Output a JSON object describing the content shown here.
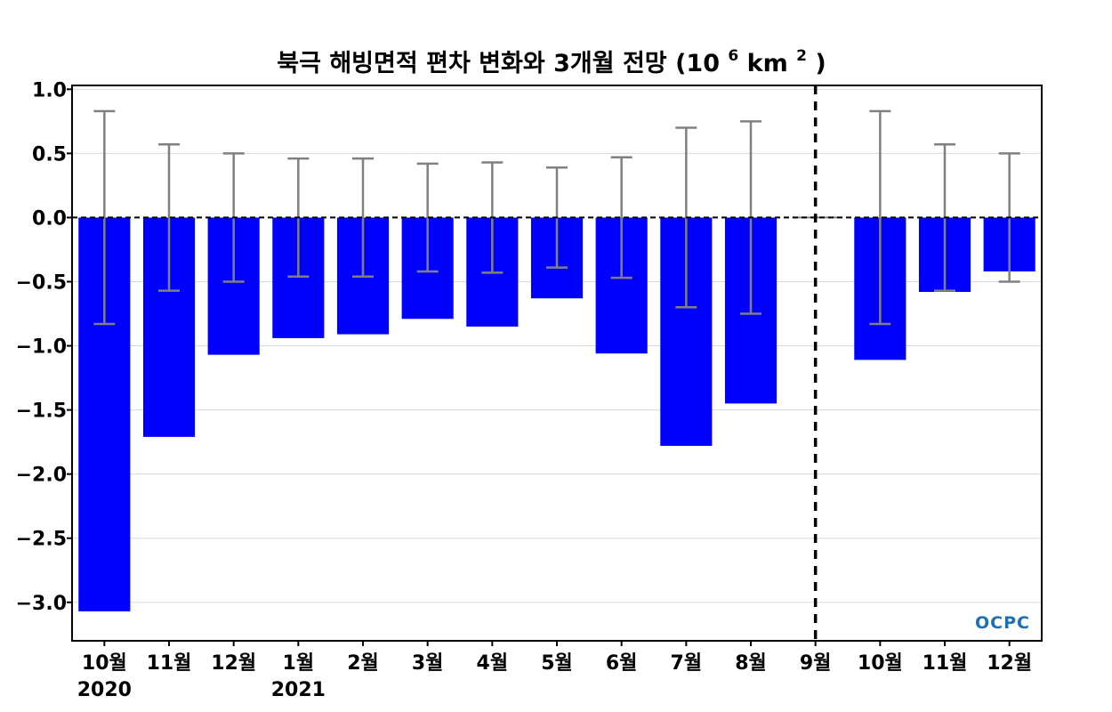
{
  "chart_data": {
    "type": "bar",
    "title": "북극 해빙면적 편차 변화와 3개월 전망",
    "title_unit": {
      "open": "(10",
      "sup1": "6",
      "mid": "km",
      "sup2": "2",
      "close": ")"
    },
    "categories": [
      "10월",
      "11월",
      "12월",
      "1월",
      "2월",
      "3월",
      "4월",
      "5월",
      "6월",
      "7월",
      "8월",
      "9월",
      "10월",
      "11월",
      "12월"
    ],
    "year_labels": [
      {
        "category_index": 0,
        "text": "2020"
      },
      {
        "category_index": 3,
        "text": "2021"
      }
    ],
    "values": [
      -3.07,
      -1.71,
      -1.07,
      -0.94,
      -0.91,
      -0.79,
      -0.85,
      -0.63,
      -1.06,
      -1.78,
      -1.45,
      0.0,
      -1.11,
      -0.58,
      -0.42
    ],
    "error_bars": [
      0.83,
      0.57,
      0.5,
      0.46,
      0.46,
      0.42,
      0.43,
      0.39,
      0.47,
      0.7,
      0.75,
      0.0,
      0.83,
      0.57,
      0.5
    ],
    "ylim": [
      -3.3,
      1.03
    ],
    "yticks": [
      1.0,
      0.5,
      0.0,
      -0.5,
      -1.0,
      -1.5,
      -2.0,
      -2.5,
      -3.0
    ],
    "ytick_labels": [
      "1.0",
      "0.5",
      "0.0",
      "−0.5",
      "−1.0",
      "−1.5",
      "−2.0",
      "−2.5",
      "−3.0"
    ],
    "divider_after_index": 11,
    "grid": true,
    "xlabel": "",
    "ylabel": ""
  },
  "colors": {
    "bar": "#0000ff",
    "error_bar": "#808080",
    "grid": "#d9d9d9",
    "zero_line": "#000000",
    "divider": "#000000"
  },
  "logo": {
    "text": "OCPC"
  }
}
